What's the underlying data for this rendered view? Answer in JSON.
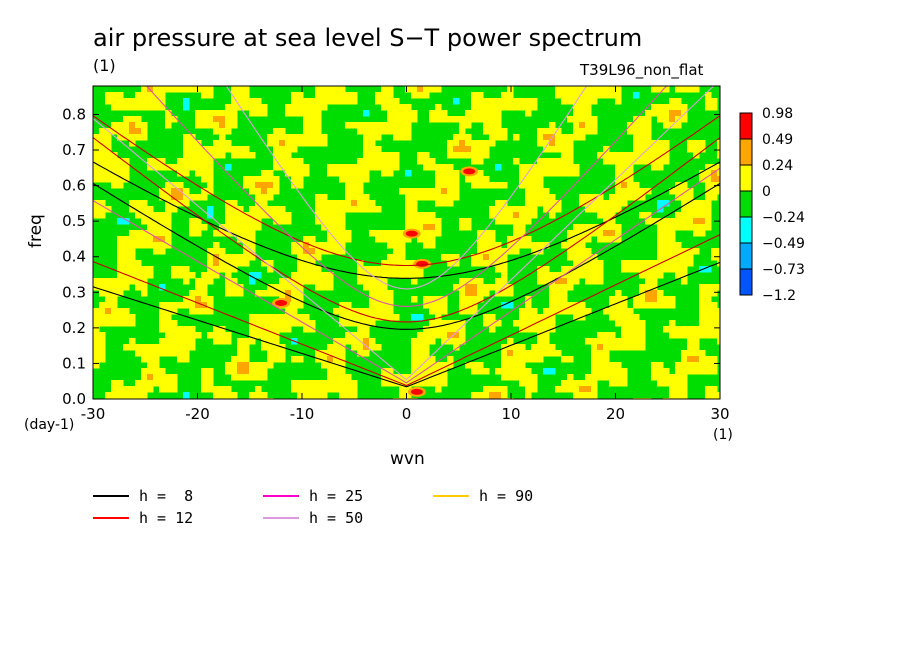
{
  "chart_data": {
    "type": "heatmap",
    "title": "air pressure at sea level S−T power spectrum",
    "unit_label": "(1)",
    "run_label": "T39L96_non_flat",
    "xlabel": "wvn",
    "xlabel_unit": "(1)",
    "ylabel": "freq",
    "ylabel_unit": "(day-1)",
    "xlim": [
      -30,
      30
    ],
    "ylim": [
      0,
      0.88
    ],
    "x_ticks": [
      "-30",
      "-20",
      "-10",
      "0",
      "10",
      "20",
      "30"
    ],
    "y_ticks": [
      "0.0",
      "0.1",
      "0.2",
      "0.3",
      "0.4",
      "0.5",
      "0.6",
      "0.7",
      "0.8"
    ],
    "x_tick_values": [
      -30,
      -20,
      -10,
      0,
      10,
      20,
      30
    ],
    "y_tick_values": [
      0,
      0.1,
      0.2,
      0.3,
      0.4,
      0.5,
      0.6,
      0.7,
      0.8
    ],
    "colorbar": {
      "levels": [
        "0.98",
        "0.49",
        "0.24",
        "0",
        "−0.24",
        "−0.49",
        "−0.73",
        "−1.2"
      ],
      "colors": [
        "#ff0000",
        "#ffa500",
        "#ffff00",
        "#00dd00",
        "#00ffff",
        "#00aaff",
        "#0055ff"
      ]
    },
    "field_colors": {
      "low": "#00dd00",
      "mid": "#ffff00",
      "high": "#ffa500",
      "peak": "#ff0000",
      "neg": "#00ffff",
      "neg2": "#00aaff"
    },
    "hotspots": [
      {
        "x": 1.5,
        "y": 0.38,
        "level": "peak"
      },
      {
        "x": 1.0,
        "y": 0.02,
        "level": "peak"
      },
      {
        "x": -12,
        "y": 0.27,
        "level": "peak"
      },
      {
        "x": 6,
        "y": 0.64,
        "level": "peak"
      },
      {
        "x": 0.5,
        "y": 0.465,
        "level": "peak"
      }
    ],
    "legend": [
      {
        "label": "h =  8",
        "color": "#000000"
      },
      {
        "label": "h = 12",
        "color": "#ff0000"
      },
      {
        "label": "h = 25",
        "color": "#ff00cc"
      },
      {
        "label": "h = 50",
        "color": "#dd99dd"
      },
      {
        "label": "h = 90",
        "color": "#ffcc00"
      }
    ],
    "dispersion_curves": [
      {
        "series": "h = 8",
        "kind": "kelvin",
        "color": "#000000"
      },
      {
        "series": "h = 8",
        "kind": "n1_sym",
        "color": "#000000"
      },
      {
        "series": "h = 8",
        "kind": "n1_anti",
        "color": "#000000"
      },
      {
        "series": "h = 12",
        "kind": "kelvin",
        "color": "#cc0000"
      },
      {
        "series": "h = 12",
        "kind": "n1_sym",
        "color": "#cc0000"
      },
      {
        "series": "h = 12",
        "kind": "n1_anti",
        "color": "#cc0000"
      },
      {
        "series": "h = 25",
        "kind": "kelvin",
        "color": "#dd55aa"
      },
      {
        "series": "h = 25",
        "kind": "n1_anti",
        "color": "#dd55aa"
      },
      {
        "series": "h = 50",
        "kind": "kelvin",
        "color": "#dda0dd"
      },
      {
        "series": "h = 50",
        "kind": "n1_anti",
        "color": "#dda0dd"
      }
    ]
  }
}
